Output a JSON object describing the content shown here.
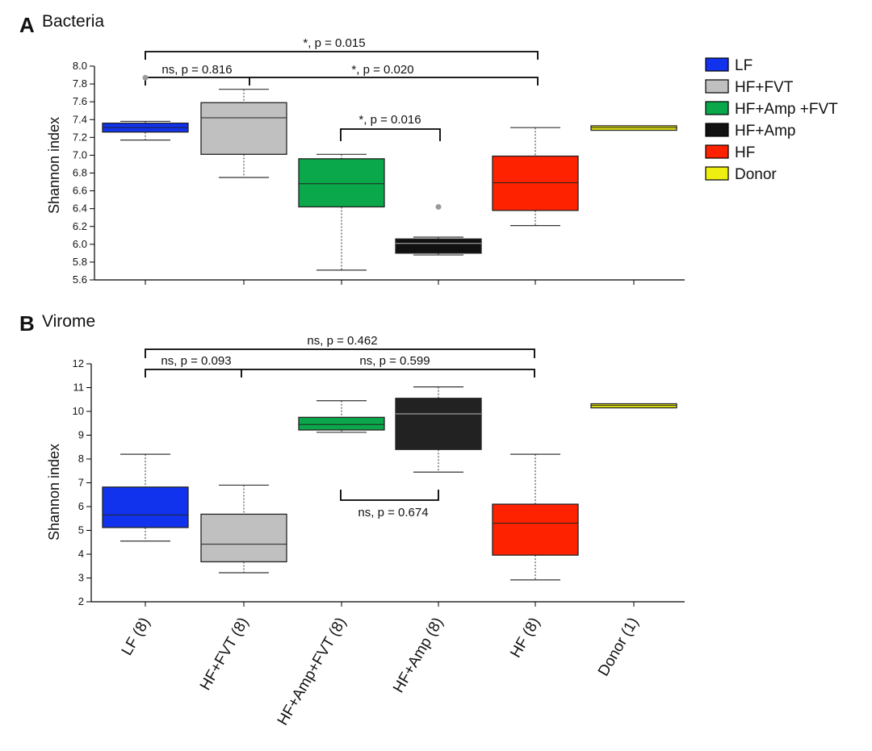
{
  "chart_data": [
    {
      "type": "box",
      "panel_letter": "A",
      "title": "Bacteria",
      "ylabel": "Shannon index",
      "ylim": [
        5.6,
        8.0
      ],
      "yticks": [
        "5.6",
        "5.8",
        "6.0",
        "6.2",
        "6.4",
        "6.6",
        "6.8",
        "7.0",
        "7.2",
        "7.4",
        "7.6",
        "7.8",
        "8.0"
      ],
      "boxes": [
        {
          "group": "LF",
          "color": "#1133ee",
          "whisker_low": 7.17,
          "q1": 7.26,
          "median": 7.31,
          "q3": 7.36,
          "whisker_high": 7.38,
          "outliers": [
            7.87
          ]
        },
        {
          "group": "HF+FVT",
          "color": "#c0c0c0",
          "whisker_low": 6.75,
          "q1": 7.01,
          "median": 7.42,
          "q3": 7.59,
          "whisker_high": 7.74,
          "outliers": []
        },
        {
          "group": "HF+Amp +FVT",
          "color": "#0aa84a",
          "whisker_low": 5.71,
          "q1": 6.42,
          "median": 6.68,
          "q3": 6.96,
          "whisker_high": 7.01,
          "outliers": []
        },
        {
          "group": "HF+Amp",
          "color": "#111111",
          "whisker_low": 5.88,
          "q1": 5.9,
          "median": 6.01,
          "q3": 6.06,
          "whisker_high": 6.08,
          "outliers": [
            6.42
          ]
        },
        {
          "group": "HF",
          "color": "#ff2200",
          "whisker_low": 6.21,
          "q1": 6.38,
          "median": 6.69,
          "q3": 6.99,
          "whisker_high": 7.31,
          "outliers": []
        },
        {
          "group": "Donor",
          "color": "#eeee11",
          "whisker_low": 7.28,
          "q1": 7.28,
          "median": 7.31,
          "q3": 7.33,
          "whisker_high": 7.33,
          "outliers": []
        }
      ],
      "annotations": [
        {
          "text": "*, p = 0.015"
        },
        {
          "text": "ns, p = 0.816"
        },
        {
          "text": "*, p = 0.020"
        },
        {
          "text": "*, p = 0.016"
        }
      ]
    },
    {
      "type": "box",
      "panel_letter": "B",
      "title": "Virome",
      "ylabel": "Shannon index",
      "ylim": [
        2,
        12
      ],
      "yticks": [
        "2",
        "3",
        "4",
        "5",
        "6",
        "7",
        "8",
        "9",
        "10",
        "11",
        "12"
      ],
      "boxes": [
        {
          "group": "LF",
          "color": "#1133ee",
          "whisker_low": 4.55,
          "q1": 5.12,
          "median": 5.65,
          "q3": 6.82,
          "whisker_high": 8.2,
          "outliers": []
        },
        {
          "group": "HF+FVT",
          "color": "#c0c0c0",
          "whisker_low": 3.22,
          "q1": 3.68,
          "median": 4.42,
          "q3": 5.68,
          "whisker_high": 6.9,
          "outliers": []
        },
        {
          "group": "HF+Amp +FVT",
          "color": "#0aa84a",
          "whisker_low": 9.12,
          "q1": 9.22,
          "median": 9.45,
          "q3": 9.75,
          "whisker_high": 10.45,
          "outliers": []
        },
        {
          "group": "HF+Amp",
          "color": "#222222",
          "whisker_low": 7.45,
          "q1": 8.4,
          "median": 9.9,
          "q3": 10.55,
          "whisker_high": 11.03,
          "outliers": []
        },
        {
          "group": "HF",
          "color": "#ff2200",
          "whisker_low": 2.92,
          "q1": 3.96,
          "median": 5.3,
          "q3": 6.1,
          "whisker_high": 8.2,
          "outliers": []
        },
        {
          "group": "Donor",
          "color": "#eeee11",
          "whisker_low": 10.15,
          "q1": 10.15,
          "median": 10.25,
          "q3": 10.32,
          "whisker_high": 10.32,
          "outliers": []
        }
      ],
      "annotations": [
        {
          "text": "ns, p = 0.462"
        },
        {
          "text": "ns, p = 0.093"
        },
        {
          "text": "ns, p = 0.599"
        },
        {
          "text": "ns, p = 0.674"
        }
      ]
    }
  ],
  "categories": [
    "LF (8)",
    "HF+FVT (8)",
    "HF+Amp+FVT (8)",
    "HF+Amp (8)",
    "HF (8)",
    "Donor (1)"
  ],
  "legend": [
    {
      "label": "LF",
      "color": "#1133ee"
    },
    {
      "label": "HF+FVT",
      "color": "#c0c0c0"
    },
    {
      "label": "HF+Amp +FVT",
      "color": "#0aa84a"
    },
    {
      "label": "HF+Amp",
      "color": "#111111"
    },
    {
      "label": "HF",
      "color": "#ff2200"
    },
    {
      "label": "Donor",
      "color": "#eeee11"
    }
  ]
}
